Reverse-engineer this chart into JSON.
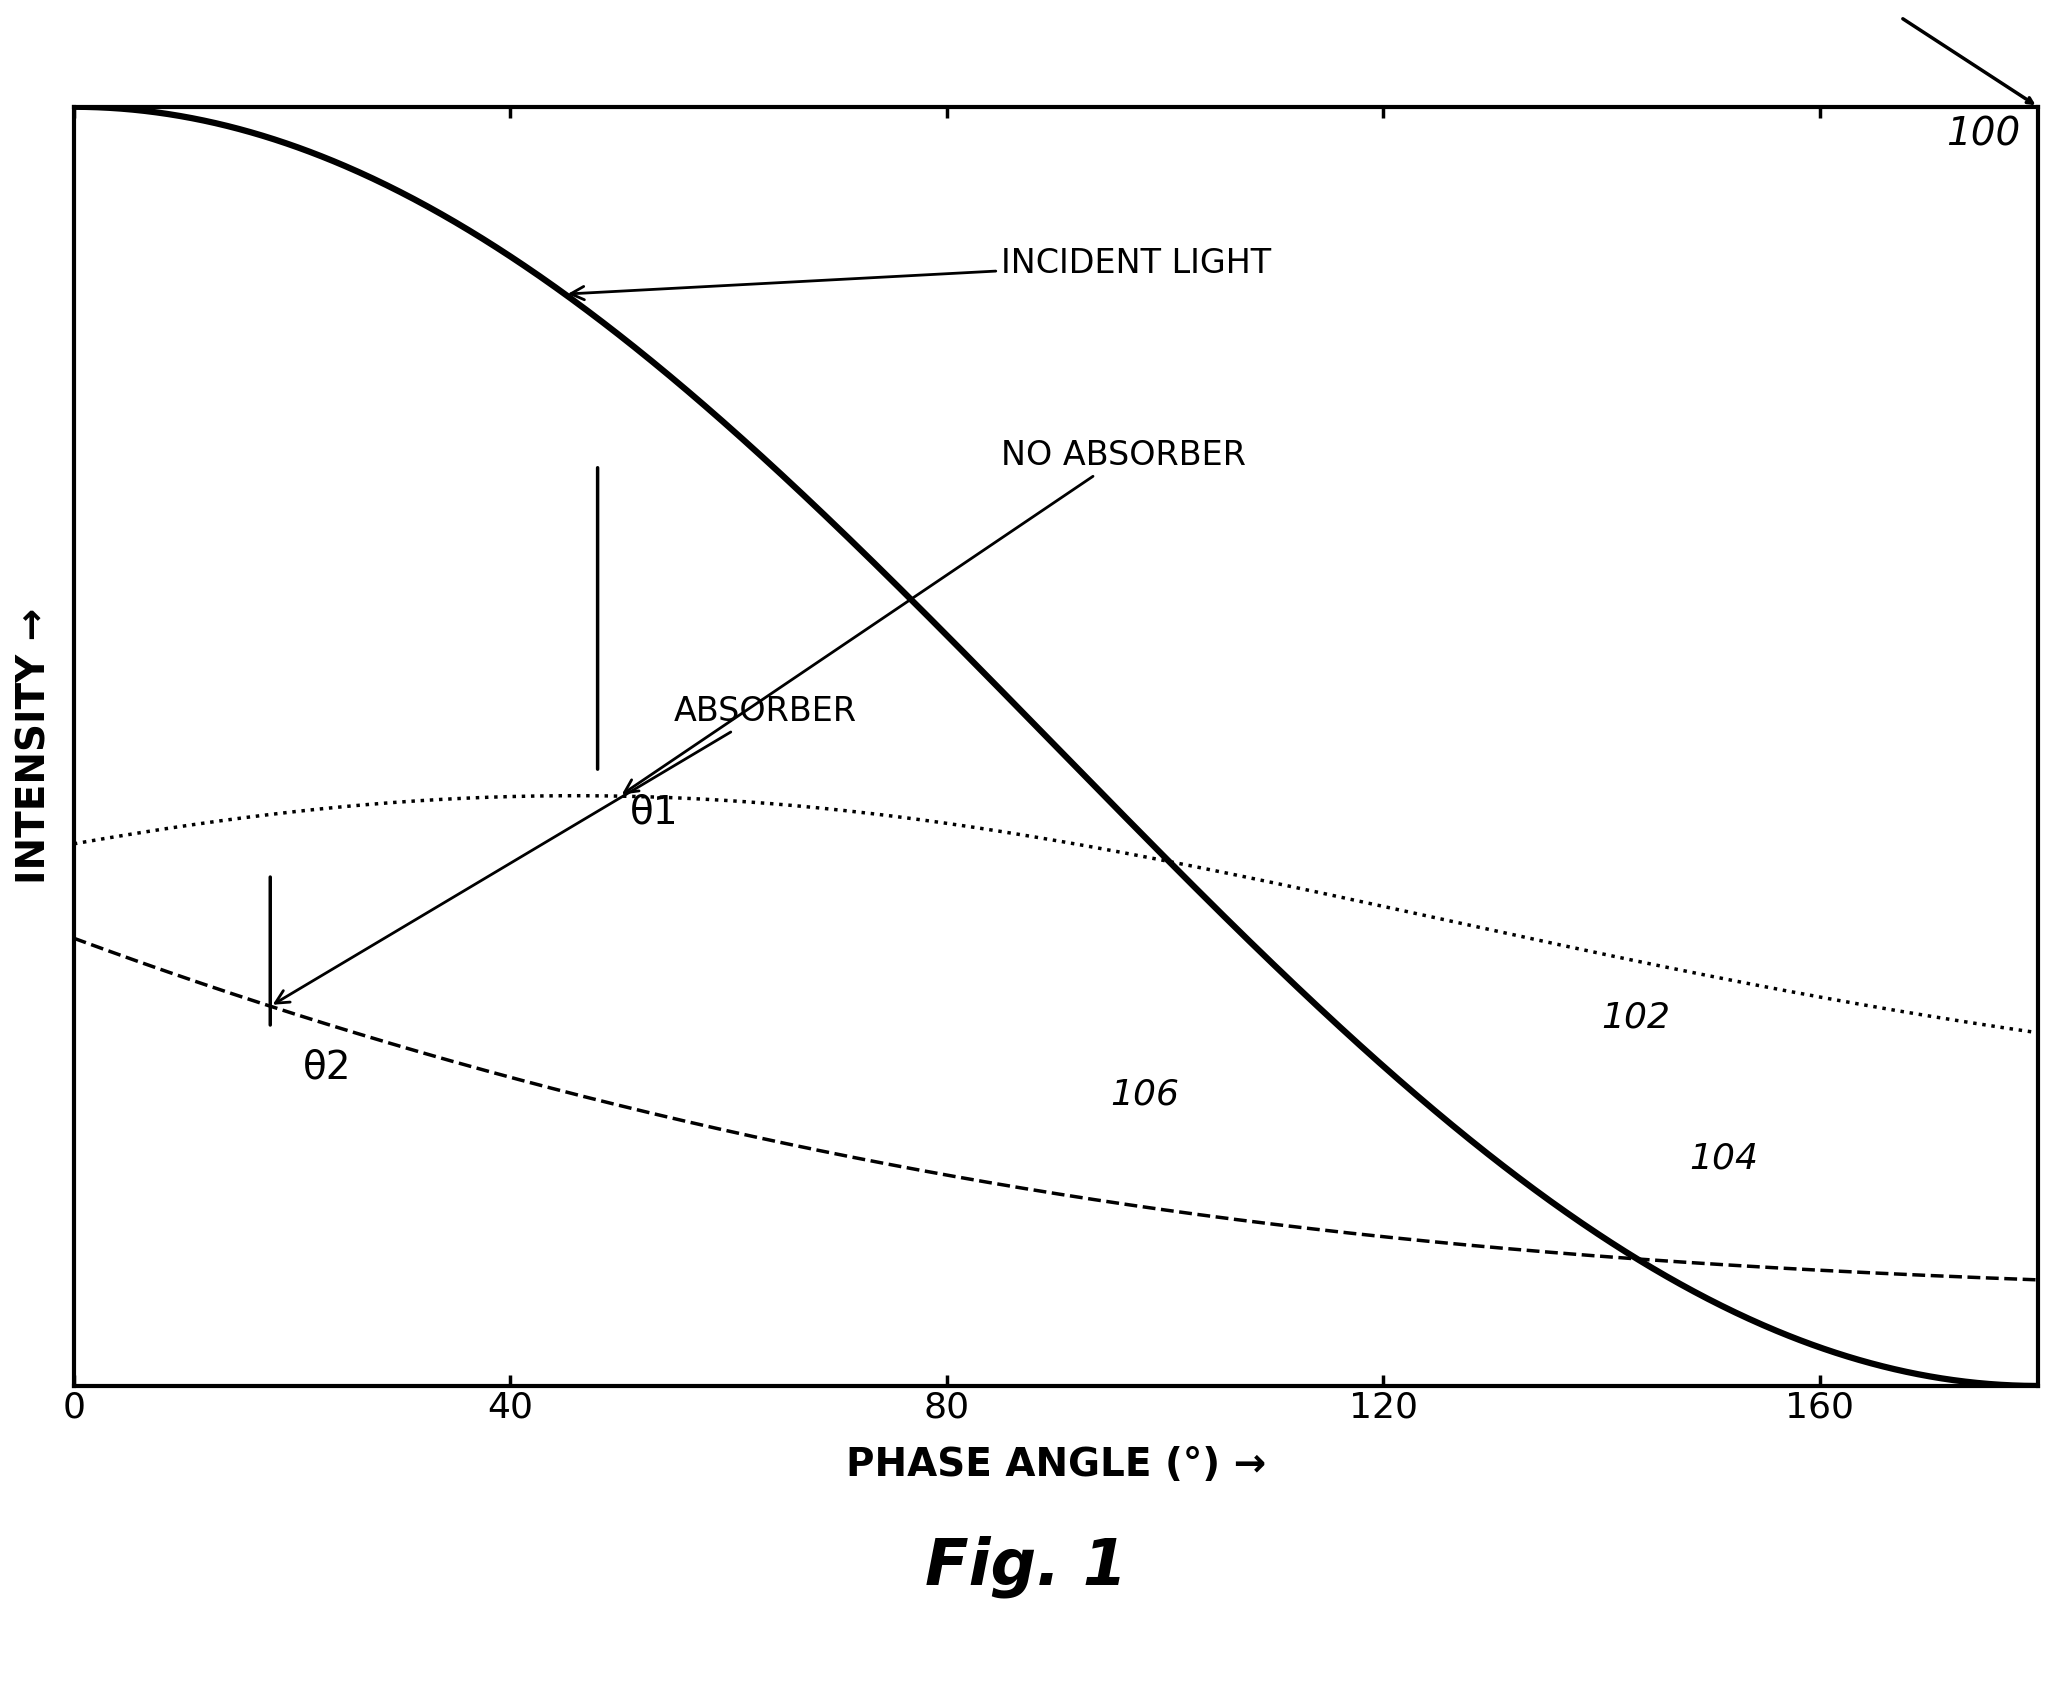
{
  "title": "Fig. 1",
  "xlabel": "PHASE ANGLE (°) →",
  "ylabel": "INTENSITY →",
  "xlim": [
    0,
    180
  ],
  "ylim": [
    0,
    1.0
  ],
  "xticks": [
    0,
    40,
    80,
    120,
    160
  ],
  "background_color": "#ffffff",
  "line_color": "#000000",
  "curve_104_label": "104",
  "curve_102_label": "102",
  "curve_106_label": "106",
  "label_100": "100",
  "annotation_incident": "INCIDENT LIGHT",
  "annotation_noabs": "NO ABSORBER",
  "annotation_absorber": "ABSORBER",
  "theta1_label": "θ1",
  "theta2_label": "θ2"
}
